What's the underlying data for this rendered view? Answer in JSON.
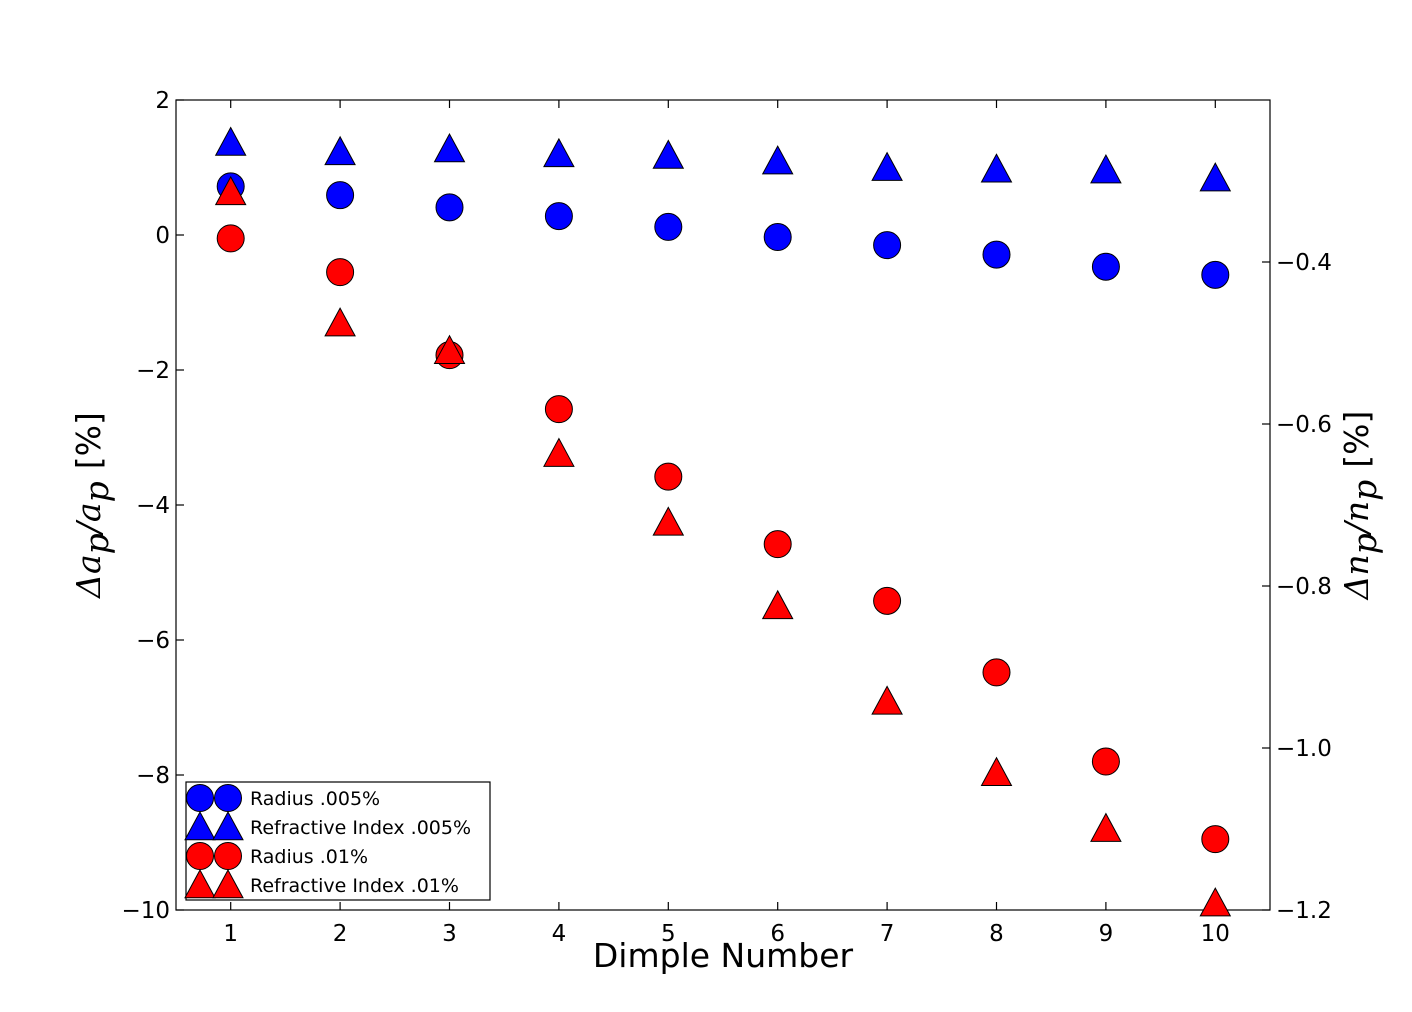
{
  "chart_data": {
    "type": "scatter",
    "title": "",
    "xlabel": "Dimple Number",
    "ylabel_left": {
      "main": "Δa",
      "sub": "p",
      "slash": "/a",
      "sub2": "p",
      "unit": "[%]"
    },
    "ylabel_right": {
      "main": "Δn",
      "sub": "p",
      "slash": "/n",
      "sub2": "p",
      "unit": "[%]"
    },
    "xlim": [
      0.5,
      10.5
    ],
    "ylim_left": [
      -10,
      2
    ],
    "ylim_right": [
      -1.2,
      -0.2
    ],
    "x_ticks": [
      "1",
      "2",
      "3",
      "4",
      "5",
      "6",
      "7",
      "8",
      "9",
      "10"
    ],
    "y_ticks_left": [
      "2",
      "0",
      "−2",
      "−4",
      "−6",
      "−8",
      "−10"
    ],
    "y_ticks_right": [
      "−0.4",
      "−0.6",
      "−0.8",
      "−1.0",
      "−1.2"
    ],
    "legend_placement": "bottom-left",
    "x": [
      1,
      2,
      3,
      4,
      5,
      6,
      7,
      8,
      9,
      10
    ],
    "series": [
      {
        "name": "Radius .005%",
        "marker": "circle",
        "color": "#0000ff",
        "axis": "left",
        "values": [
          0.72,
          0.59,
          0.41,
          0.28,
          0.12,
          -0.03,
          -0.15,
          -0.29,
          -0.47,
          -0.59
        ]
      },
      {
        "name": "Refractive Index .005%",
        "marker": "triangle",
        "color": "#0000ff",
        "axis": "right",
        "values": [
          -0.2525,
          -0.264,
          -0.2605,
          -0.2665,
          -0.2685,
          -0.2755,
          -0.2835,
          -0.2855,
          -0.2865,
          -0.2965
        ]
      },
      {
        "name": "Radius .01%",
        "marker": "circle",
        "color": "#ff0000",
        "axis": "left",
        "values": [
          -0.05,
          -0.55,
          -1.78,
          -2.58,
          -3.58,
          -4.58,
          -5.42,
          -6.48,
          -7.8,
          -8.95
        ]
      },
      {
        "name": "Refractive Index .01%",
        "marker": "triangle",
        "color": "#ff0000",
        "axis": "right",
        "values": [
          -0.3135,
          -0.4755,
          -0.5095,
          -0.6365,
          -0.7215,
          -0.8245,
          -0.9425,
          -1.0305,
          -1.0995,
          -1.1915
        ]
      }
    ]
  }
}
